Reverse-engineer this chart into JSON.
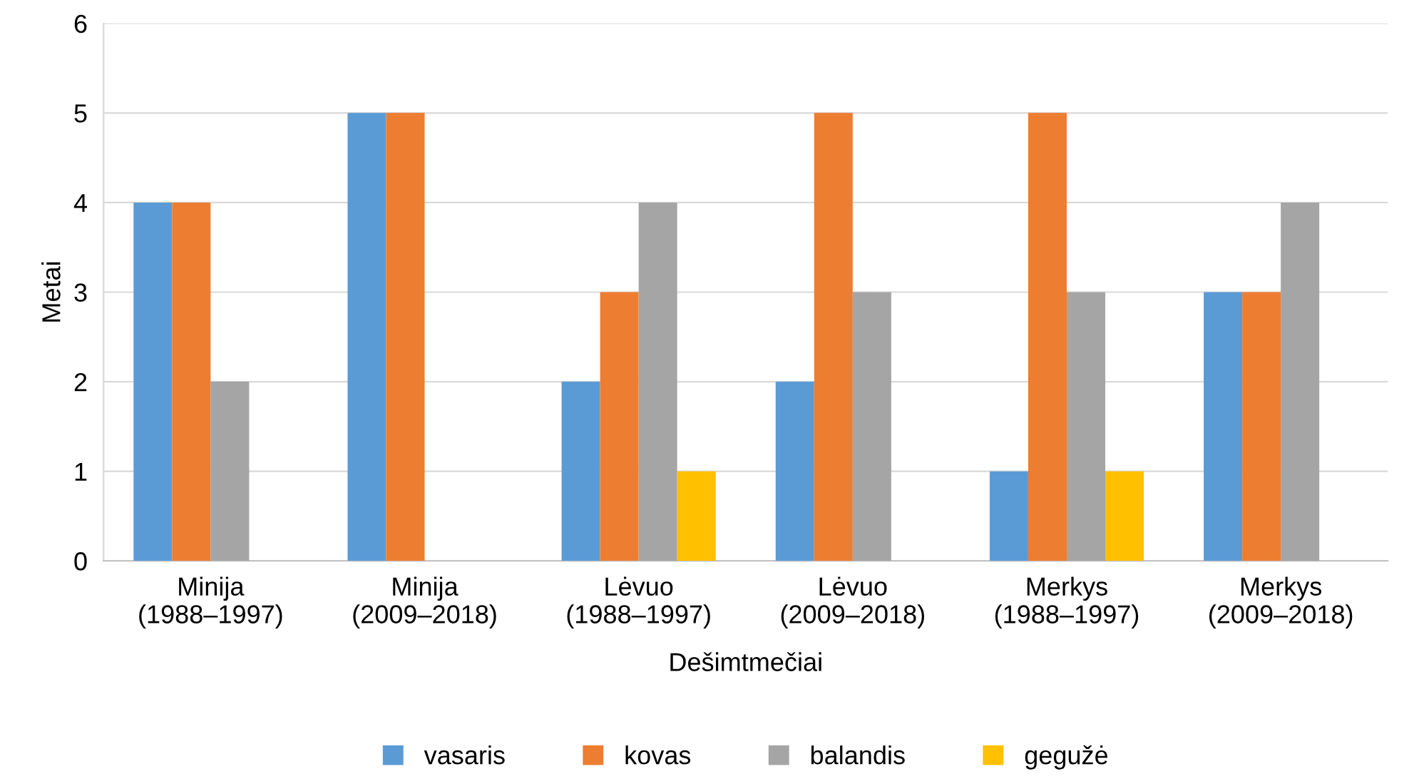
{
  "chart_data": {
    "type": "bar",
    "xlabel": "Dešimtmečiai",
    "ylabel": "Metai",
    "categories": [
      "Minija\n(1988–1997)",
      "Minija\n(2009–2018)",
      "Lėvuo\n(1988–1997)",
      "Lėvuo\n(2009–2018)",
      "Merkys\n(1988–1997)",
      "Merkys\n(2009–2018)"
    ],
    "series": [
      {
        "name": "vasaris",
        "color": "#5b9bd5",
        "values": [
          4,
          5,
          2,
          2,
          1,
          3
        ]
      },
      {
        "name": "kovas",
        "color": "#ed7d31",
        "values": [
          4,
          5,
          3,
          5,
          5,
          3
        ]
      },
      {
        "name": "balandis",
        "color": "#a5a5a5",
        "values": [
          2,
          0,
          4,
          3,
          3,
          4
        ]
      },
      {
        "name": "gegužė",
        "color": "#ffc000",
        "values": [
          0,
          0,
          1,
          0,
          1,
          0
        ]
      }
    ],
    "ylim": [
      0,
      6
    ],
    "yticks": [
      0,
      1,
      2,
      3,
      4,
      5,
      6
    ],
    "grid": "y",
    "legend": "bottom"
  }
}
